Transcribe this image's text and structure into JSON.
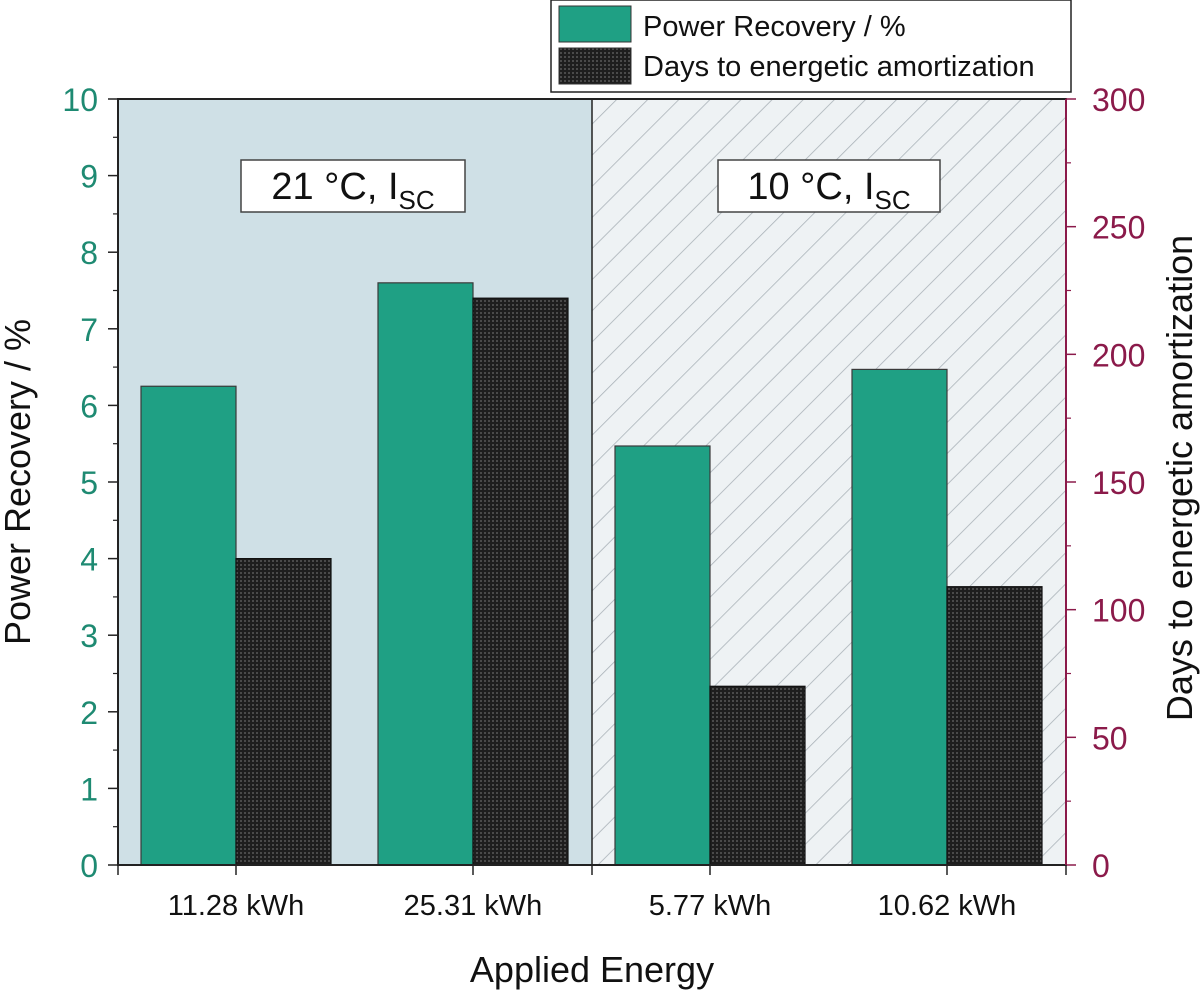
{
  "chart_data": {
    "type": "bar",
    "xlabel": "Applied Energy",
    "categories": [
      "11.28 kWh",
      "25.31 kWh",
      "5.77 kWh",
      "10.62 kWh"
    ],
    "series": [
      {
        "name": "Power Recovery / %",
        "axis": "left",
        "values": [
          6.25,
          7.6,
          5.47,
          6.47
        ],
        "color": "#1fa084"
      },
      {
        "name": "Days to energetic amortization",
        "axis": "right",
        "values": [
          120,
          222,
          70,
          109
        ],
        "color": "#2a2a2a"
      }
    ],
    "left_axis": {
      "label": "Power Recovery / %",
      "range": [
        0,
        10
      ],
      "ticks": [
        "0",
        "1",
        "2",
        "3",
        "4",
        "5",
        "6",
        "7",
        "8",
        "9",
        "10"
      ],
      "color": "#1e8a72"
    },
    "right_axis": {
      "label": "Days to energetic amortization",
      "range": [
        0,
        300
      ],
      "ticks": [
        "0",
        "50",
        "100",
        "150",
        "200",
        "250",
        "300"
      ],
      "color": "#8b1a4a"
    },
    "regions": [
      {
        "label": "21 °C, I",
        "sub": "SC",
        "style": "solid",
        "color": "#cfe0e6",
        "categories": [
          "11.28 kWh",
          "25.31 kWh"
        ]
      },
      {
        "label": "10 °C, I",
        "sub": "SC",
        "style": "hatched",
        "color": "#eef2f4",
        "categories": [
          "5.77 kWh",
          "10.62 kWh"
        ]
      }
    ],
    "legend": {
      "placement": "top-right",
      "entries": [
        "Power Recovery / %",
        "Days to energetic amortization"
      ]
    }
  }
}
